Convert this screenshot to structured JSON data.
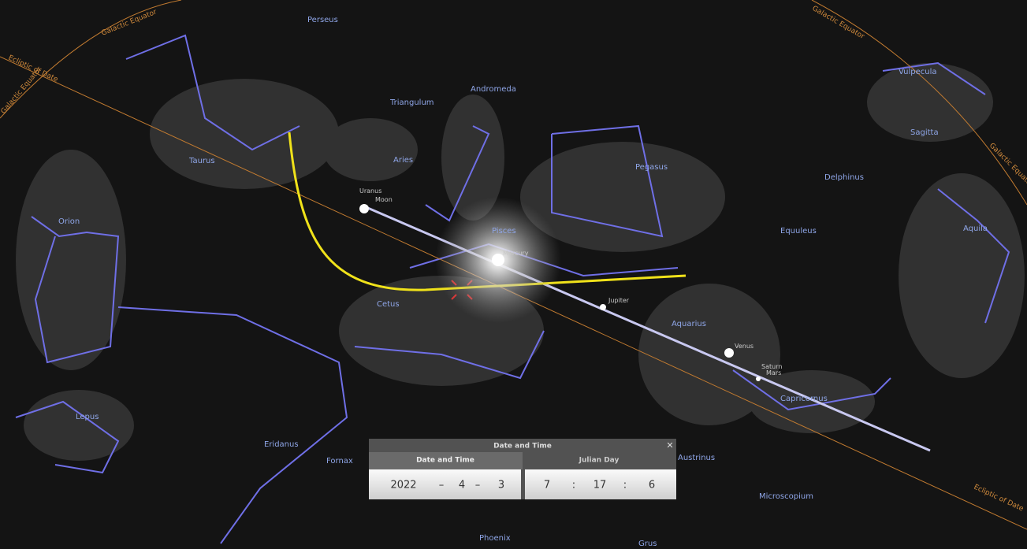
{
  "sky_labels": {
    "constellations": [
      "Perseus",
      "Andromeda",
      "Triangulum",
      "Aries",
      "Taurus",
      "Orion",
      "Pisces",
      "Pegasus",
      "Delphinus",
      "Vulpecula",
      "Sagitta",
      "Aquila",
      "Equuleus",
      "Cetus",
      "Aquarius",
      "Capricornus",
      "Lepus",
      "Eridanus",
      "Fornax",
      "Austrinus",
      "Microscopium",
      "Phoenix",
      "Grus"
    ],
    "planets": [
      "Uranus",
      "Moon",
      "Mercury",
      "Jupiter",
      "Venus",
      "Saturn",
      "Mars"
    ],
    "lines": [
      "Galactic Equator",
      "Ecliptic of Date"
    ]
  },
  "dialog": {
    "title": "Date and Time",
    "tabs": [
      "Date and Time",
      "Julian Day"
    ],
    "close": "✕",
    "date": {
      "year": "2022",
      "month": "4",
      "day": "3"
    },
    "time": {
      "hour": "7",
      "minute": "17",
      "second": "6"
    },
    "separators": [
      "–",
      "–",
      ":",
      ":"
    ]
  }
}
